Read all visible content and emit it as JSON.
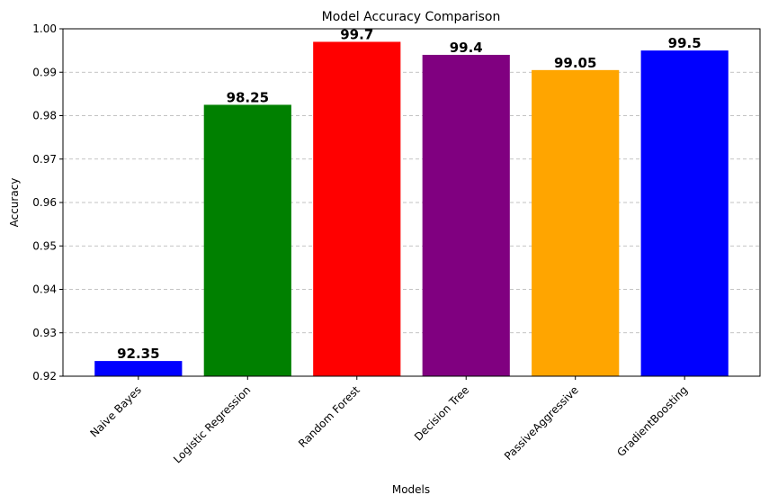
{
  "chart_data": {
    "type": "bar",
    "title": "Model Accuracy Comparison",
    "xlabel": "Models",
    "ylabel": "Accuracy",
    "categories": [
      "Naive Bayes",
      "Logistic Regression",
      "Random Forest",
      "Decision Tree",
      "PassiveAggressive",
      "GradientBoosting"
    ],
    "values": [
      0.9235,
      0.9825,
      0.997,
      0.994,
      0.9905,
      0.995
    ],
    "data_labels": [
      "92.35",
      "98.25",
      "99.7",
      "99.4",
      "99.05",
      "99.5"
    ],
    "colors": [
      "#0000ff",
      "#008000",
      "#ff0000",
      "#800080",
      "#ffa500",
      "#0000ff"
    ],
    "ylim": [
      0.92,
      1.0
    ],
    "yticks": [
      "0.92",
      "0.93",
      "0.94",
      "0.95",
      "0.96",
      "0.97",
      "0.98",
      "0.99",
      "1.00"
    ],
    "grid": "y-dashed",
    "xtick_rotation": 45
  }
}
